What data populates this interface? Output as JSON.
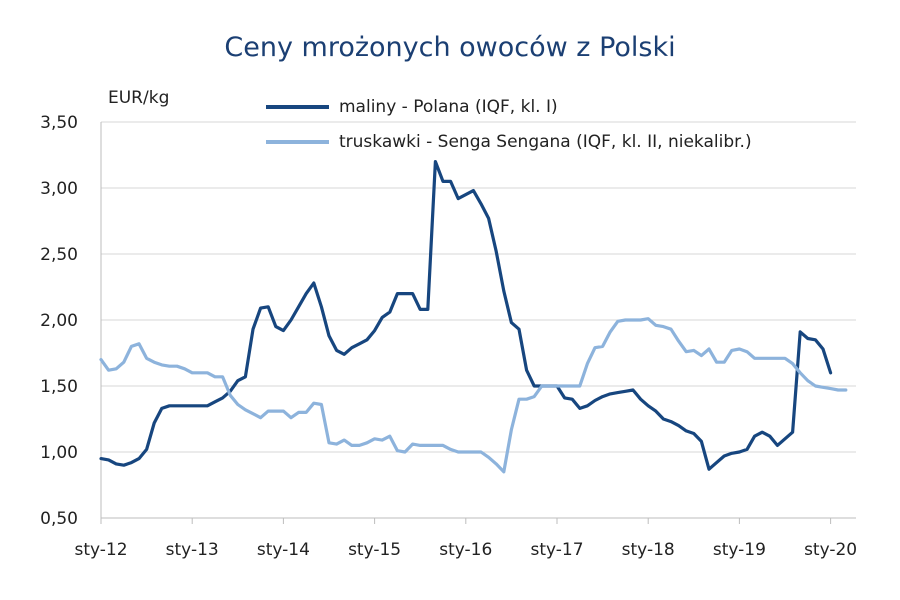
{
  "chart_data": {
    "type": "line",
    "title": "Ceny mrożonych owoców z Polski",
    "ylabel": "EUR/kg",
    "xlabel": "",
    "ylim": [
      0.5,
      3.5
    ],
    "yticks": [
      "0,50",
      "1,00",
      "1,50",
      "2,00",
      "2,50",
      "3,00",
      "3,50"
    ],
    "ytick_values": [
      0.5,
      1.0,
      1.5,
      2.0,
      2.5,
      3.0,
      3.5
    ],
    "xticks": [
      "sty-12",
      "sty-13",
      "sty-14",
      "sty-15",
      "sty-16",
      "sty-17",
      "sty-18",
      "sty-19",
      "sty-20"
    ],
    "xtick_dates": [
      "2012-01",
      "2013-01",
      "2014-01",
      "2015-01",
      "2016-01",
      "2017-01",
      "2018-01",
      "2019-01",
      "2020-01"
    ],
    "grid": true,
    "legend_position": "top",
    "series": [
      {
        "name": "maliny - Polana (IQF, kl. I)",
        "color": "#17467f",
        "points": [
          [
            "2012-01",
            0.95
          ],
          [
            "2012-02",
            0.94
          ],
          [
            "2012-03",
            0.91
          ],
          [
            "2012-04",
            0.9
          ],
          [
            "2012-05",
            0.92
          ],
          [
            "2012-06",
            0.95
          ],
          [
            "2012-07",
            1.02
          ],
          [
            "2012-08",
            1.22
          ],
          [
            "2012-09",
            1.33
          ],
          [
            "2012-10",
            1.35
          ],
          [
            "2012-11",
            1.35
          ],
          [
            "2012-12",
            1.35
          ],
          [
            "2013-01",
            1.35
          ],
          [
            "2013-02",
            1.35
          ],
          [
            "2013-03",
            1.35
          ],
          [
            "2013-04",
            1.38
          ],
          [
            "2013-05",
            1.41
          ],
          [
            "2013-06",
            1.46
          ],
          [
            "2013-07",
            1.54
          ],
          [
            "2013-08",
            1.57
          ],
          [
            "2013-09",
            1.93
          ],
          [
            "2013-10",
            2.09
          ],
          [
            "2013-11",
            2.1
          ],
          [
            "2013-12",
            1.95
          ],
          [
            "2014-01",
            1.92
          ],
          [
            "2014-02",
            2.0
          ],
          [
            "2014-03",
            2.1
          ],
          [
            "2014-04",
            2.2
          ],
          [
            "2014-05",
            2.28
          ],
          [
            "2014-06",
            2.1
          ],
          [
            "2014-07",
            1.88
          ],
          [
            "2014-08",
            1.77
          ],
          [
            "2014-09",
            1.74
          ],
          [
            "2014-10",
            1.79
          ],
          [
            "2014-11",
            1.82
          ],
          [
            "2014-12",
            1.85
          ],
          [
            "2015-01",
            1.92
          ],
          [
            "2015-02",
            2.02
          ],
          [
            "2015-03",
            2.06
          ],
          [
            "2015-04",
            2.2
          ],
          [
            "2015-05",
            2.2
          ],
          [
            "2015-06",
            2.2
          ],
          [
            "2015-07",
            2.08
          ],
          [
            "2015-08",
            2.08
          ],
          [
            "2015-09",
            3.2
          ],
          [
            "2015-10",
            3.05
          ],
          [
            "2015-11",
            3.05
          ],
          [
            "2015-12",
            2.92
          ],
          [
            "2016-01",
            2.95
          ],
          [
            "2016-02",
            2.98
          ],
          [
            "2016-03",
            2.88
          ],
          [
            "2016-04",
            2.77
          ],
          [
            "2016-05",
            2.52
          ],
          [
            "2016-06",
            2.22
          ],
          [
            "2016-07",
            1.98
          ],
          [
            "2016-08",
            1.93
          ],
          [
            "2016-09",
            1.62
          ],
          [
            "2016-10",
            1.5
          ],
          [
            "2016-11",
            1.5
          ],
          [
            "2016-12",
            1.5
          ],
          [
            "2017-01",
            1.5
          ],
          [
            "2017-02",
            1.41
          ],
          [
            "2017-03",
            1.4
          ],
          [
            "2017-04",
            1.33
          ],
          [
            "2017-05",
            1.35
          ],
          [
            "2017-06",
            1.39
          ],
          [
            "2017-07",
            1.42
          ],
          [
            "2017-08",
            1.44
          ],
          [
            "2017-09",
            1.45
          ],
          [
            "2017-10",
            1.46
          ],
          [
            "2017-11",
            1.47
          ],
          [
            "2017-12",
            1.4
          ],
          [
            "2018-01",
            1.35
          ],
          [
            "2018-02",
            1.31
          ],
          [
            "2018-03",
            1.25
          ],
          [
            "2018-04",
            1.23
          ],
          [
            "2018-05",
            1.2
          ],
          [
            "2018-06",
            1.16
          ],
          [
            "2018-07",
            1.14
          ],
          [
            "2018-08",
            1.08
          ],
          [
            "2018-09",
            0.87
          ],
          [
            "2018-10",
            0.92
          ],
          [
            "2018-11",
            0.97
          ],
          [
            "2018-12",
            0.99
          ],
          [
            "2019-01",
            1.0
          ],
          [
            "2019-02",
            1.02
          ],
          [
            "2019-03",
            1.12
          ],
          [
            "2019-04",
            1.15
          ],
          [
            "2019-05",
            1.12
          ],
          [
            "2019-06",
            1.05
          ],
          [
            "2019-07",
            1.1
          ],
          [
            "2019-08",
            1.15
          ],
          [
            "2019-09",
            1.91
          ],
          [
            "2019-10",
            1.86
          ],
          [
            "2019-11",
            1.85
          ],
          [
            "2019-12",
            1.78
          ],
          [
            "2020-01",
            1.6
          ]
        ]
      },
      {
        "name": "truskawki - Senga Sengana (IQF, kl. II, niekalibr.)",
        "color": "#8db3dc",
        "points": [
          [
            "2012-01",
            1.7
          ],
          [
            "2012-02",
            1.62
          ],
          [
            "2012-03",
            1.63
          ],
          [
            "2012-04",
            1.68
          ],
          [
            "2012-05",
            1.8
          ],
          [
            "2012-06",
            1.82
          ],
          [
            "2012-07",
            1.71
          ],
          [
            "2012-08",
            1.68
          ],
          [
            "2012-09",
            1.66
          ],
          [
            "2012-10",
            1.65
          ],
          [
            "2012-11",
            1.65
          ],
          [
            "2012-12",
            1.63
          ],
          [
            "2013-01",
            1.6
          ],
          [
            "2013-02",
            1.6
          ],
          [
            "2013-03",
            1.6
          ],
          [
            "2013-04",
            1.57
          ],
          [
            "2013-05",
            1.57
          ],
          [
            "2013-06",
            1.43
          ],
          [
            "2013-07",
            1.36
          ],
          [
            "2013-08",
            1.32
          ],
          [
            "2013-09",
            1.29
          ],
          [
            "2013-10",
            1.26
          ],
          [
            "2013-11",
            1.31
          ],
          [
            "2013-12",
            1.31
          ],
          [
            "2014-01",
            1.31
          ],
          [
            "2014-02",
            1.26
          ],
          [
            "2014-03",
            1.3
          ],
          [
            "2014-04",
            1.3
          ],
          [
            "2014-05",
            1.37
          ],
          [
            "2014-06",
            1.36
          ],
          [
            "2014-07",
            1.07
          ],
          [
            "2014-08",
            1.06
          ],
          [
            "2014-09",
            1.09
          ],
          [
            "2014-10",
            1.05
          ],
          [
            "2014-11",
            1.05
          ],
          [
            "2014-12",
            1.07
          ],
          [
            "2015-01",
            1.1
          ],
          [
            "2015-02",
            1.09
          ],
          [
            "2015-03",
            1.12
          ],
          [
            "2015-04",
            1.01
          ],
          [
            "2015-05",
            1.0
          ],
          [
            "2015-06",
            1.06
          ],
          [
            "2015-07",
            1.05
          ],
          [
            "2015-08",
            1.05
          ],
          [
            "2015-09",
            1.05
          ],
          [
            "2015-10",
            1.05
          ],
          [
            "2015-11",
            1.02
          ],
          [
            "2015-12",
            1.0
          ],
          [
            "2016-01",
            1.0
          ],
          [
            "2016-02",
            1.0
          ],
          [
            "2016-03",
            1.0
          ],
          [
            "2016-04",
            0.96
          ],
          [
            "2016-05",
            0.91
          ],
          [
            "2016-06",
            0.85
          ],
          [
            "2016-07",
            1.17
          ],
          [
            "2016-08",
            1.4
          ],
          [
            "2016-09",
            1.4
          ],
          [
            "2016-10",
            1.42
          ],
          [
            "2016-11",
            1.5
          ],
          [
            "2016-12",
            1.5
          ],
          [
            "2017-01",
            1.5
          ],
          [
            "2017-02",
            1.5
          ],
          [
            "2017-03",
            1.5
          ],
          [
            "2017-04",
            1.5
          ],
          [
            "2017-05",
            1.67
          ],
          [
            "2017-06",
            1.79
          ],
          [
            "2017-07",
            1.8
          ],
          [
            "2017-08",
            1.91
          ],
          [
            "2017-09",
            1.99
          ],
          [
            "2017-10",
            2.0
          ],
          [
            "2017-11",
            2.0
          ],
          [
            "2017-12",
            2.0
          ],
          [
            "2018-01",
            2.01
          ],
          [
            "2018-02",
            1.96
          ],
          [
            "2018-03",
            1.95
          ],
          [
            "2018-04",
            1.93
          ],
          [
            "2018-05",
            1.84
          ],
          [
            "2018-06",
            1.76
          ],
          [
            "2018-07",
            1.77
          ],
          [
            "2018-08",
            1.73
          ],
          [
            "2018-09",
            1.78
          ],
          [
            "2018-10",
            1.68
          ],
          [
            "2018-11",
            1.68
          ],
          [
            "2018-12",
            1.77
          ],
          [
            "2019-01",
            1.78
          ],
          [
            "2019-02",
            1.76
          ],
          [
            "2019-03",
            1.71
          ],
          [
            "2019-04",
            1.71
          ],
          [
            "2019-05",
            1.71
          ],
          [
            "2019-06",
            1.71
          ],
          [
            "2019-07",
            1.71
          ],
          [
            "2019-08",
            1.67
          ],
          [
            "2019-09",
            1.6
          ],
          [
            "2019-10",
            1.54
          ],
          [
            "2019-11",
            1.5
          ],
          [
            "2019-12",
            1.49
          ],
          [
            "2020-01",
            1.48
          ],
          [
            "2020-02",
            1.47
          ],
          [
            "2020-03",
            1.47
          ]
        ]
      }
    ]
  }
}
